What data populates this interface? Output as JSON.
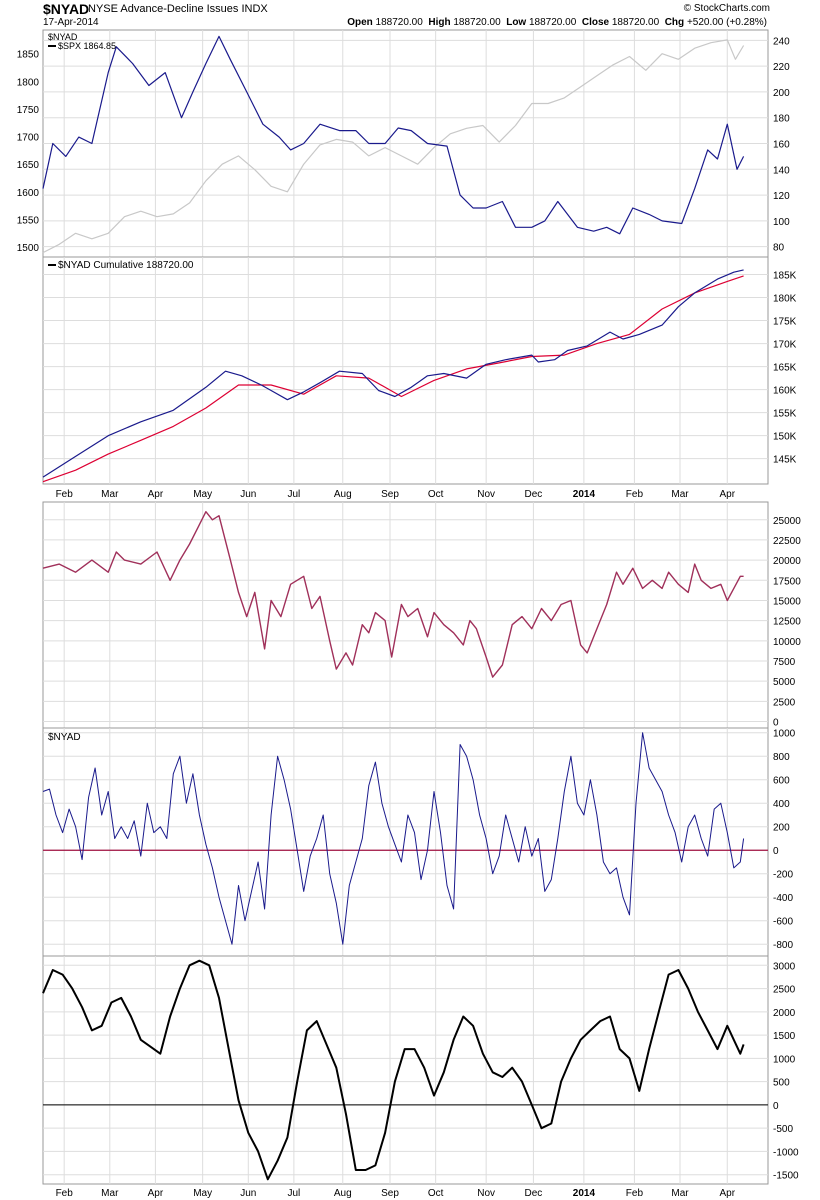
{
  "header": {
    "symbol": "$NYAD",
    "description": "NYSE Advance-Decline Issues",
    "exchange": "INDX",
    "date": "17-Apr-2014",
    "open_label": "Open",
    "open": "188720.00",
    "high_label": "High",
    "high": "188720.00",
    "low_label": "Low",
    "low": "188720.00",
    "close_label": "Close",
    "close": "188720.00",
    "chg_label": "Chg",
    "chg": "+520.00 (+0.28%)",
    "brand": "© StockCharts.com"
  },
  "x_axis": {
    "months": [
      "Feb",
      "Mar",
      "Apr",
      "May",
      "Jun",
      "Jul",
      "Aug",
      "Sep",
      "Oct",
      "Nov",
      "Dec",
      "2014",
      "Feb",
      "Mar",
      "Apr"
    ],
    "month_positions_days": [
      13,
      41,
      69,
      98,
      126,
      154,
      184,
      213,
      241,
      272,
      301,
      332,
      363,
      391,
      420
    ]
  },
  "colors": {
    "nyad": "#1a1a8c",
    "spx": "#c8c8c8",
    "ma": "#dd0033",
    "breadth": "#a0305a",
    "zero_line": "#a01040",
    "smooth": "#000000",
    "grid": "#dddddd"
  },
  "chart_data": [
    {
      "type": "line",
      "legend": [
        "$NYAD",
        "$SPX 1864.85"
      ],
      "y_left_ticks": [
        1500,
        1550,
        1600,
        1650,
        1700,
        1750,
        1800,
        1850
      ],
      "y_right_ticks": [
        80,
        100,
        120,
        140,
        160,
        180,
        200,
        220,
        240
      ],
      "series": [
        {
          "name": "$NYAD",
          "axis": "right",
          "x": [
            0,
            6,
            14,
            22,
            30,
            40,
            45,
            55,
            65,
            75,
            85,
            92,
            100,
            108,
            115,
            125,
            135,
            145,
            152,
            160,
            170,
            182,
            192,
            200,
            210,
            218,
            226,
            236,
            248,
            256,
            264,
            272,
            282,
            290,
            300,
            308,
            316,
            328,
            338,
            346,
            354,
            362,
            372,
            380,
            392,
            400,
            408,
            414,
            420,
            426,
            430
          ],
          "values": [
            125,
            160,
            150,
            165,
            160,
            215,
            235,
            222,
            205,
            215,
            180,
            200,
            222,
            243,
            225,
            200,
            175,
            165,
            155,
            160,
            175,
            170,
            170,
            160,
            160,
            172,
            170,
            160,
            158,
            120,
            110,
            110,
            115,
            95,
            95,
            100,
            115,
            95,
            92,
            95,
            90,
            110,
            105,
            100,
            98,
            125,
            155,
            148,
            175,
            140,
            150
          ]
        },
        {
          "name": "$SPX 1864.85",
          "axis": "left",
          "x": [
            0,
            10,
            20,
            30,
            40,
            50,
            60,
            70,
            80,
            90,
            100,
            110,
            120,
            130,
            140,
            150,
            160,
            170,
            180,
            190,
            200,
            210,
            220,
            230,
            240,
            250,
            260,
            270,
            280,
            290,
            300,
            310,
            320,
            330,
            340,
            350,
            360,
            370,
            380,
            390,
            400,
            410,
            420,
            425,
            430
          ],
          "values": [
            1490,
            1505,
            1525,
            1515,
            1525,
            1555,
            1565,
            1555,
            1560,
            1580,
            1620,
            1650,
            1665,
            1640,
            1610,
            1600,
            1650,
            1685,
            1695,
            1690,
            1665,
            1680,
            1665,
            1650,
            1680,
            1705,
            1715,
            1720,
            1690,
            1720,
            1760,
            1760,
            1770,
            1790,
            1810,
            1830,
            1845,
            1820,
            1850,
            1840,
            1860,
            1870,
            1875,
            1840,
            1865
          ]
        }
      ]
    },
    {
      "type": "line",
      "legend": [
        "$NYAD Cumulative 188720.00"
      ],
      "y_ticks": [
        145000,
        150000,
        155000,
        160000,
        165000,
        170000,
        175000,
        180000,
        185000
      ],
      "y_tick_labels": [
        "145K",
        "150K",
        "155K",
        "160K",
        "165K",
        "170K",
        "175K",
        "180K",
        "185K"
      ],
      "series": [
        {
          "name": "$NYAD Cumulative 188720.00",
          "x": [
            0,
            20,
            40,
            60,
            80,
            100,
            112,
            122,
            134,
            140,
            150,
            160,
            170,
            182,
            196,
            206,
            216,
            226,
            236,
            246,
            260,
            272,
            284,
            300,
            304,
            314,
            322,
            334,
            348,
            356,
            366,
            380,
            390,
            400,
            414,
            424,
            430
          ],
          "values": [
            141000,
            145500,
            150000,
            153000,
            155500,
            160500,
            164000,
            163000,
            161000,
            159800,
            157800,
            159500,
            161500,
            164000,
            163500,
            159800,
            158500,
            160500,
            163000,
            163500,
            162500,
            165500,
            166500,
            167500,
            166000,
            166500,
            168500,
            169500,
            172500,
            171000,
            172000,
            174000,
            178000,
            181000,
            184000,
            185500,
            186000
          ]
        },
        {
          "name": "MA",
          "x": [
            0,
            20,
            40,
            60,
            80,
            100,
            120,
            140,
            160,
            180,
            200,
            220,
            240,
            260,
            280,
            300,
            320,
            340,
            360,
            380,
            400,
            420,
            430
          ],
          "values": [
            140000,
            142500,
            146000,
            149000,
            152000,
            156000,
            161000,
            161000,
            159000,
            163000,
            162500,
            158500,
            162000,
            164500,
            165800,
            167200,
            167500,
            170000,
            172000,
            177500,
            181000,
            183500,
            184700
          ]
        }
      ]
    },
    {
      "type": "line",
      "y_ticks": [
        0,
        2500,
        5000,
        7500,
        10000,
        12500,
        15000,
        17500,
        20000,
        22500,
        25000
      ],
      "series": [
        {
          "name": "breadth",
          "x": [
            0,
            10,
            20,
            30,
            40,
            45,
            50,
            60,
            70,
            78,
            84,
            90,
            95,
            100,
            104,
            108,
            115,
            120,
            125,
            130,
            136,
            140,
            146,
            152,
            160,
            165,
            170,
            176,
            180,
            186,
            190,
            196,
            200,
            204,
            210,
            214,
            220,
            224,
            230,
            236,
            240,
            246,
            252,
            258,
            262,
            266,
            272,
            276,
            282,
            288,
            294,
            300,
            306,
            312,
            318,
            324,
            330,
            334,
            340,
            346,
            352,
            356,
            362,
            368,
            374,
            380,
            384,
            390,
            396,
            400,
            404,
            410,
            416,
            420,
            424,
            428,
            430
          ],
          "values": [
            19000,
            19500,
            18500,
            20000,
            18500,
            21000,
            20000,
            19500,
            21000,
            17500,
            20000,
            22000,
            24000,
            26000,
            25000,
            25500,
            20000,
            16000,
            13000,
            16000,
            9000,
            15000,
            13000,
            17000,
            18000,
            14000,
            15500,
            10000,
            6500,
            8500,
            7000,
            12000,
            11000,
            13500,
            12500,
            8000,
            14500,
            13000,
            14000,
            10500,
            13500,
            12000,
            11000,
            9500,
            12500,
            11500,
            8000,
            5500,
            7000,
            12000,
            13000,
            11500,
            14000,
            12500,
            14500,
            15000,
            9500,
            8500,
            11500,
            14500,
            18500,
            17000,
            19000,
            16500,
            17500,
            16500,
            18500,
            17000,
            16000,
            19500,
            17500,
            16500,
            17000,
            15000,
            16500,
            18000,
            18000
          ]
        }
      ]
    },
    {
      "type": "line",
      "legend": [
        "$NYAD"
      ],
      "y_ticks": [
        -800,
        -600,
        -400,
        -200,
        0,
        200,
        400,
        600,
        800,
        1000
      ],
      "series": [
        {
          "name": "$NYAD",
          "x": [
            0,
            4,
            8,
            12,
            16,
            20,
            24,
            28,
            32,
            36,
            40,
            44,
            48,
            52,
            56,
            60,
            64,
            68,
            72,
            76,
            80,
            84,
            88,
            92,
            96,
            100,
            104,
            108,
            112,
            116,
            120,
            124,
            128,
            132,
            136,
            140,
            144,
            148,
            152,
            156,
            160,
            164,
            168,
            172,
            176,
            180,
            184,
            188,
            192,
            196,
            200,
            204,
            208,
            212,
            216,
            220,
            224,
            228,
            232,
            236,
            240,
            244,
            248,
            252,
            256,
            260,
            264,
            268,
            272,
            276,
            280,
            284,
            288,
            292,
            296,
            300,
            304,
            308,
            312,
            316,
            320,
            324,
            328,
            332,
            336,
            340,
            344,
            348,
            352,
            356,
            360,
            364,
            368,
            372,
            376,
            380,
            384,
            388,
            392,
            396,
            400,
            404,
            408,
            412,
            416,
            420,
            424,
            428,
            430
          ],
          "values": [
            500,
            520,
            300,
            150,
            350,
            200,
            -80,
            450,
            700,
            300,
            500,
            100,
            200,
            100,
            250,
            -50,
            400,
            150,
            200,
            100,
            650,
            800,
            400,
            650,
            300,
            50,
            -150,
            -400,
            -600,
            -800,
            -300,
            -600,
            -350,
            -100,
            -500,
            300,
            800,
            600,
            350,
            0,
            -350,
            -50,
            100,
            300,
            -200,
            -450,
            -800,
            -300,
            -100,
            100,
            550,
            750,
            400,
            200,
            50,
            -100,
            300,
            150,
            -250,
            0,
            500,
            150,
            -300,
            -500,
            900,
            800,
            600,
            300,
            100,
            -200,
            -50,
            300,
            100,
            -100,
            200,
            -50,
            100,
            -350,
            -250,
            100,
            500,
            800,
            400,
            300,
            600,
            300,
            -100,
            -200,
            -150,
            -400,
            -550,
            400,
            1000,
            700,
            600,
            500,
            300,
            150,
            -100,
            200,
            300,
            100,
            -50,
            350,
            400,
            150,
            -150,
            -100,
            100
          ]
        }
      ]
    },
    {
      "type": "line",
      "y_ticks": [
        -1500,
        -1000,
        -500,
        0,
        500,
        1000,
        1500,
        2000,
        2500,
        3000
      ],
      "series": [
        {
          "name": "oscillator",
          "x": [
            0,
            6,
            12,
            18,
            24,
            30,
            36,
            42,
            48,
            54,
            60,
            66,
            72,
            78,
            84,
            90,
            96,
            102,
            108,
            114,
            120,
            126,
            132,
            138,
            144,
            150,
            156,
            162,
            168,
            174,
            180,
            186,
            192,
            198,
            204,
            210,
            216,
            222,
            228,
            234,
            240,
            246,
            252,
            258,
            264,
            270,
            276,
            282,
            288,
            294,
            300,
            306,
            312,
            318,
            324,
            330,
            336,
            342,
            348,
            354,
            360,
            366,
            372,
            378,
            384,
            390,
            396,
            402,
            408,
            414,
            420,
            424,
            428,
            430
          ],
          "values": [
            2400,
            2900,
            2800,
            2500,
            2100,
            1600,
            1700,
            2200,
            2300,
            1900,
            1400,
            1250,
            1100,
            1900,
            2500,
            3000,
            3100,
            3000,
            2300,
            1200,
            100,
            -600,
            -1000,
            -1600,
            -1200,
            -700,
            500,
            1600,
            1800,
            1300,
            800,
            -200,
            -1400,
            -1400,
            -1300,
            -600,
            500,
            1200,
            1200,
            800,
            200,
            700,
            1400,
            1900,
            1700,
            1100,
            700,
            600,
            800,
            500,
            0,
            -500,
            -400,
            500,
            1000,
            1400,
            1600,
            1800,
            1900,
            1200,
            1000,
            300,
            1200,
            2000,
            2800,
            2900,
            2500,
            2000,
            1600,
            1200,
            1700,
            1400,
            1100,
            1300
          ]
        }
      ]
    }
  ]
}
